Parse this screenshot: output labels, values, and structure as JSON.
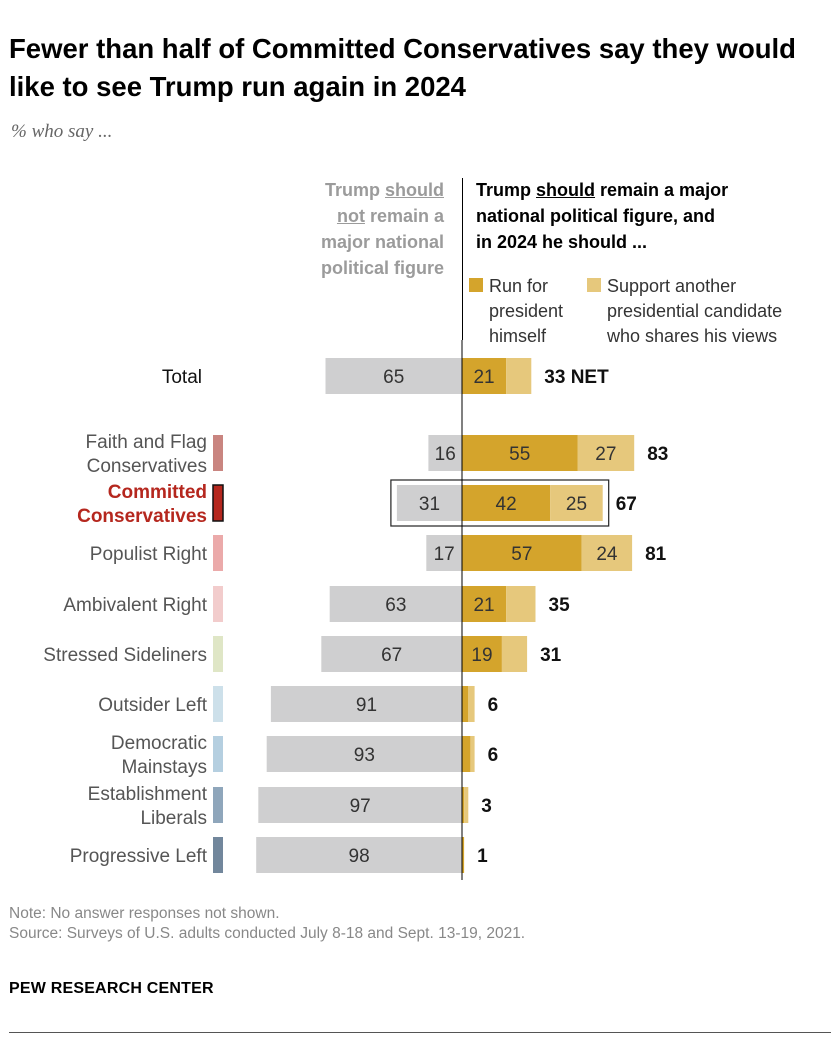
{
  "title": "Fewer than half of Committed Conservatives say they would like to see Trump run again in 2024",
  "subtitle": "% who say ...",
  "legend": {
    "left_line1_a": "Trump ",
    "left_line1_b": "should",
    "left_line2_a": "not",
    "left_line2_b": " remain a",
    "left_line3": "major national",
    "left_line4": "political figure",
    "right_line1_a": "Trump ",
    "right_line1_b": "should",
    "right_line1_c": " remain a major",
    "right_line2": "national political figure, and",
    "right_line3": "in 2024 he should ...",
    "run_line1": "Run for",
    "run_line2": "president",
    "run_line3": "himself",
    "support_line1": "Support another",
    "support_line2": "presidential candidate",
    "support_line3": "who shares his views"
  },
  "colors": {
    "not_remain": "#cfcfd0",
    "run": "#d4a42c",
    "support": "#e6c87c",
    "highlight": "#b5271e"
  },
  "chart_data": {
    "type": "bar",
    "orientation": "horizontal-diverging",
    "categories": [
      "Total",
      "Faith and Flag Conservatives",
      "Committed Conservatives",
      "Populist Right",
      "Ambivalent Right",
      "Stressed Sideliners",
      "Outsider Left",
      "Democratic Mainstays",
      "Establishment Liberals",
      "Progressive Left"
    ],
    "series": [
      {
        "name": "Trump should not remain a major national political figure",
        "values": [
          65,
          16,
          31,
          17,
          63,
          67,
          91,
          93,
          97,
          98
        ]
      },
      {
        "name": "Run for president himself",
        "values": [
          21,
          55,
          42,
          57,
          21,
          19,
          3,
          4,
          1,
          1
        ]
      },
      {
        "name": "Support another presidential candidate who shares his views",
        "values": [
          12,
          27,
          25,
          24,
          14,
          12,
          3,
          2,
          2,
          0
        ]
      }
    ],
    "net_values": [
      33,
      83,
      67,
      81,
      35,
      31,
      6,
      6,
      3,
      1
    ],
    "net_label": "NET",
    "row_labels": [
      [
        "Total"
      ],
      [
        "Faith and Flag",
        "Conservatives"
      ],
      [
        "Committed",
        "Conservatives"
      ],
      [
        "Populist Right"
      ],
      [
        "Ambivalent Right"
      ],
      [
        "Stressed Sideliners"
      ],
      [
        "Outsider Left"
      ],
      [
        "Democratic",
        "Mainstays"
      ],
      [
        "Establishment",
        "Liberals"
      ],
      [
        "Progressive Left"
      ]
    ],
    "show_segment_labels": [
      [
        true,
        true,
        false
      ],
      [
        true,
        true,
        true
      ],
      [
        true,
        true,
        true
      ],
      [
        true,
        true,
        true
      ],
      [
        true,
        true,
        false
      ],
      [
        true,
        true,
        false
      ],
      [
        true,
        false,
        false
      ],
      [
        true,
        false,
        false
      ],
      [
        true,
        false,
        false
      ],
      [
        true,
        false,
        false
      ]
    ],
    "highlighted": "Committed Conservatives",
    "group_colors": [
      "",
      "#c98580",
      "#b5271e",
      "#ebaaaa",
      "#f2cccc",
      "#dfe6c6",
      "#cde0ea",
      "#b5cfe0",
      "#8fa6bb",
      "#72879c"
    ]
  },
  "footer": {
    "note": "Note: No answer responses not shown.",
    "source": "Source: Surveys of U.S. adults conducted July 8-18 and Sept. 13-19, 2021.",
    "brand": "PEW RESEARCH CENTER"
  }
}
